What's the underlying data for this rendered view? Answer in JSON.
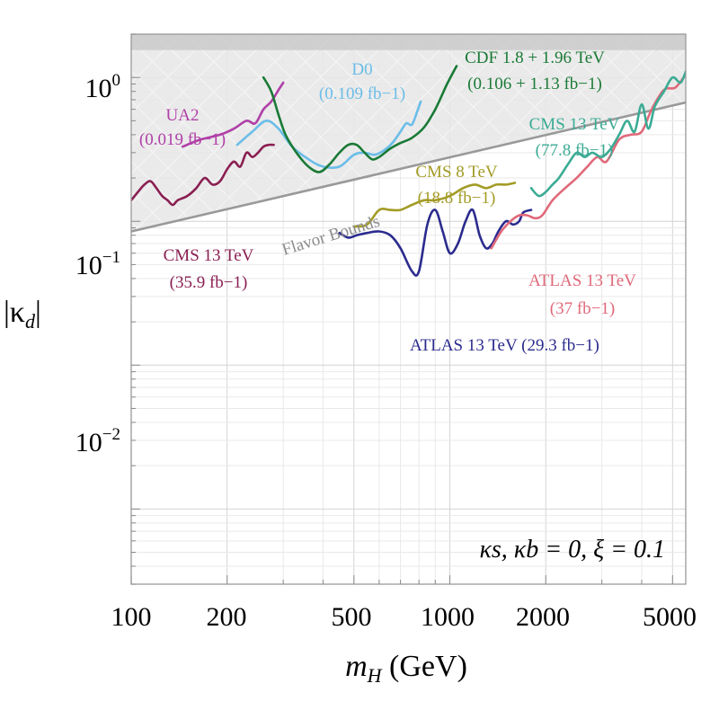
{
  "chart_data": {
    "type": "line",
    "x_scale": "log",
    "y_scale": "log",
    "xlim": [
      100,
      5500
    ],
    "ylim": [
      0.0003,
      2.0
    ],
    "xticks": [
      100,
      200,
      500,
      1000,
      2000,
      5000
    ],
    "xtick_labels": [
      "100",
      "200",
      "500",
      "1000",
      "2000",
      "5000"
    ],
    "yticks": [
      1,
      0.1,
      0.01
    ],
    "ytick_labels": [
      {
        "base": "10",
        "exp": "0"
      },
      {
        "base": "10",
        "exp": "−1"
      },
      {
        "base": "10",
        "exp": "−2"
      }
    ],
    "xlabel": {
      "main": "m",
      "sub": "H",
      "unit": " (GeV)"
    },
    "ylabel": {
      "main": "|κ",
      "sub": "d",
      "end": "|"
    },
    "annotation": "κs, κb = 0, ξ = 0.1",
    "grid": true,
    "excluded_region": {
      "description_label": "Flavor Bounds",
      "color": "#e6e6e6"
    },
    "flavor_bound": {
      "name": "Flavor Bounds",
      "color": "#999999",
      "x": [
        100,
        5500
      ],
      "y": [
        0.085,
        0.67
      ]
    },
    "series": [
      {
        "name": "UA2",
        "lumi": "(0.019 fb−1)",
        "color": "#b03fa8",
        "x": [
          145,
          165,
          190,
          210,
          230,
          245,
          260,
          275,
          290,
          300
        ],
        "y": [
          0.33,
          0.37,
          0.4,
          0.44,
          0.5,
          0.48,
          0.6,
          0.68,
          0.82,
          0.92
        ]
      },
      {
        "name": "CMS 13 TeV",
        "lumi": "(35.9 fb−1)",
        "color": "#8a1f52",
        "x": [
          100,
          105,
          110,
          115,
          120,
          125,
          130,
          135,
          140,
          150,
          160,
          170,
          180,
          190,
          200,
          210,
          220,
          230,
          240,
          250,
          260,
          270,
          280
        ],
        "y": [
          0.14,
          0.16,
          0.18,
          0.19,
          0.17,
          0.15,
          0.14,
          0.13,
          0.14,
          0.15,
          0.17,
          0.2,
          0.18,
          0.19,
          0.23,
          0.26,
          0.24,
          0.3,
          0.28,
          0.3,
          0.33,
          0.34,
          0.34
        ]
      },
      {
        "name": "D0",
        "lumi": "(0.109 fb−1)",
        "color": "#6bbde8",
        "x": [
          215,
          240,
          265,
          290,
          320,
          360,
          400,
          450,
          500,
          540,
          580,
          620,
          660,
          700,
          730,
          760,
          790,
          810
        ],
        "y": [
          0.34,
          0.42,
          0.5,
          0.44,
          0.33,
          0.27,
          0.24,
          0.24,
          0.29,
          0.3,
          0.29,
          0.31,
          0.35,
          0.42,
          0.48,
          0.47,
          0.58,
          0.68
        ]
      },
      {
        "name": "CDF 1.8 + 1.96 TeV",
        "lumi": "(0.106 + 1.13 fb−1)",
        "color": "#1a7a36",
        "x": [
          260,
          275,
          290,
          305,
          330,
          360,
          390,
          420,
          450,
          480,
          510,
          540,
          570,
          600,
          650,
          700,
          760,
          830,
          900,
          980,
          1050
        ],
        "y": [
          1.0,
          0.8,
          0.55,
          0.4,
          0.3,
          0.24,
          0.22,
          0.25,
          0.3,
          0.34,
          0.34,
          0.3,
          0.27,
          0.28,
          0.32,
          0.35,
          0.38,
          0.45,
          0.6,
          0.9,
          1.2
        ]
      },
      {
        "name": "CMS 8 TeV",
        "lumi": "(18.8 fb−1)",
        "color": "#a39b25",
        "x": [
          500,
          550,
          600,
          650,
          700,
          760,
          830,
          900,
          1000,
          1100,
          1200,
          1300,
          1400,
          1500,
          1600
        ],
        "y": [
          0.092,
          0.095,
          0.12,
          0.12,
          0.12,
          0.13,
          0.14,
          0.14,
          0.15,
          0.17,
          0.18,
          0.17,
          0.18,
          0.18,
          0.185
        ]
      },
      {
        "name": "ATLAS 13 TeV",
        "lumi": "(29.3 fb−1)",
        "color": "#2b2b8e",
        "x": [
          450,
          480,
          510,
          550,
          600,
          650,
          700,
          760,
          800,
          850,
          900,
          950,
          1000,
          1060,
          1120,
          1180,
          1240,
          1300,
          1360,
          1420,
          1500,
          1580,
          1650,
          1700,
          1800
        ],
        "y": [
          0.083,
          0.077,
          0.08,
          0.083,
          0.085,
          0.08,
          0.065,
          0.045,
          0.045,
          0.095,
          0.12,
          0.085,
          0.06,
          0.07,
          0.1,
          0.12,
          0.08,
          0.065,
          0.07,
          0.085,
          0.1,
          0.095,
          0.1,
          0.115,
          0.12
        ]
      },
      {
        "name": "ATLAS 13 TeV",
        "lumi": "(37 fb−1)",
        "color": "#e0697a",
        "x": [
          1350,
          1450,
          1550,
          1650,
          1750,
          1850,
          1950,
          2100,
          2300,
          2500,
          2700,
          2900,
          3100,
          3400,
          3700,
          4000,
          4300,
          4700,
          5100,
          5500
        ],
        "y": [
          0.065,
          0.085,
          0.1,
          0.11,
          0.11,
          0.105,
          0.11,
          0.14,
          0.17,
          0.2,
          0.24,
          0.28,
          0.26,
          0.37,
          0.4,
          0.42,
          0.6,
          0.82,
          0.85,
          1.05
        ]
      },
      {
        "name": "CMS 13 TeV",
        "lumi": "(77.8 fb−1)",
        "color": "#3aab94",
        "x": [
          1800,
          1900,
          2000,
          2100,
          2200,
          2350,
          2500,
          2650,
          2800,
          3000,
          3200,
          3400,
          3600,
          3800,
          4000,
          4200,
          4400,
          4700,
          5000,
          5300,
          5500
        ],
        "y": [
          0.17,
          0.15,
          0.16,
          0.18,
          0.2,
          0.25,
          0.3,
          0.28,
          0.3,
          0.28,
          0.32,
          0.4,
          0.5,
          0.42,
          0.65,
          0.44,
          0.63,
          0.8,
          1.0,
          0.92,
          1.1
        ]
      }
    ]
  }
}
